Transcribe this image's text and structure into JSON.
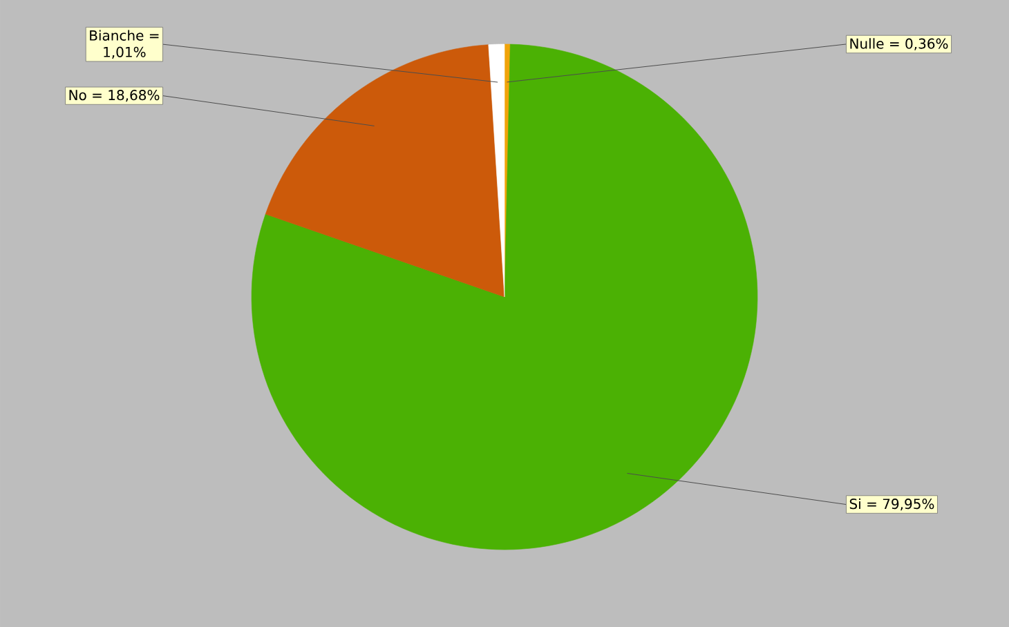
{
  "chart_data": {
    "type": "pie",
    "categories": [
      "Nulle = 0,36%",
      "Si = 79,95%",
      "No = 18,68%",
      "Bianche = 1,01%"
    ],
    "values": [
      0.36,
      79.95,
      18.68,
      1.01
    ],
    "colors": [
      "#f0a30a",
      "#4bb104",
      "#cc5a0a",
      "#ffffff"
    ]
  }
}
